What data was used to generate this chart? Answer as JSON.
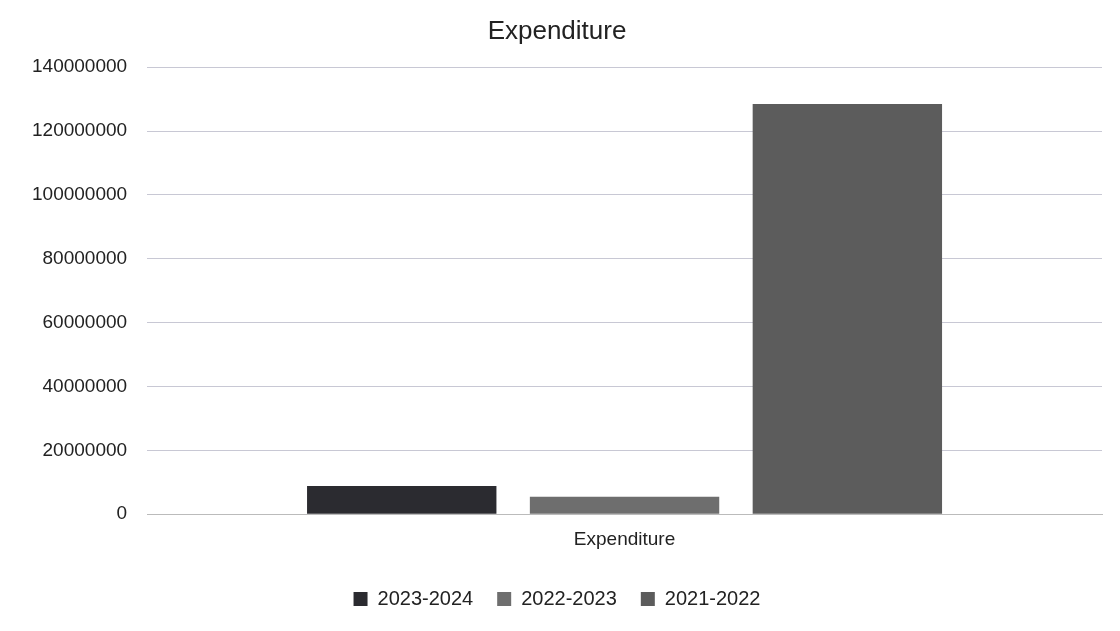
{
  "chart_data": {
    "type": "bar",
    "title": "Expenditure",
    "categories": [
      "Expenditure"
    ],
    "series": [
      {
        "name": "2023-2024",
        "color": "#2b2b30",
        "values": [
          8800000
        ]
      },
      {
        "name": "2022-2023",
        "color": "#6e6e6e",
        "values": [
          5500000
        ]
      },
      {
        "name": "2021-2022",
        "color": "#5c5c5c",
        "values": [
          128500000
        ]
      }
    ],
    "ylim": [
      0,
      140000000
    ],
    "yticks": [
      0,
      20000000,
      40000000,
      60000000,
      80000000,
      100000000,
      120000000,
      140000000
    ],
    "grid": "y",
    "legend": "bottom"
  }
}
